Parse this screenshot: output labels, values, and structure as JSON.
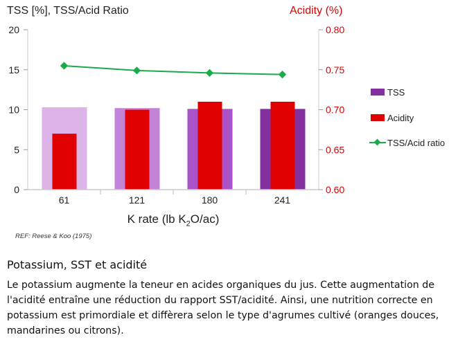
{
  "chart_data": {
    "type": "bar",
    "title": "",
    "ylabel": "TSS [%], TSS/Acid Ratio",
    "y2label": "Acidity (%)",
    "xlabel_parts": [
      "K rate (lb K",
      "2",
      "O/ac)"
    ],
    "categories": [
      "61",
      "121",
      "180",
      "241"
    ],
    "ylim": [
      0,
      20
    ],
    "yticks": [
      "0",
      "5",
      "10",
      "15",
      "20"
    ],
    "y2lim": [
      0.6,
      0.8
    ],
    "y2ticks": [
      "0.60",
      "0.65",
      "0.70",
      "0.75",
      "0.80"
    ],
    "series": [
      {
        "name": "TSS",
        "type": "bar",
        "axis": "left",
        "values": [
          10.3,
          10.2,
          10.1,
          10.1
        ],
        "colors": [
          "#dcb4e8",
          "#c383d8",
          "#ab52c8",
          "#8530a0"
        ],
        "legend_color": "#8530a0"
      },
      {
        "name": "Acidity",
        "type": "bar",
        "axis": "right",
        "values": [
          0.67,
          0.7,
          0.71,
          0.71
        ],
        "color": "#e00000"
      },
      {
        "name": "TSS/Acid ratio",
        "type": "line",
        "axis": "left",
        "values": [
          15.5,
          14.9,
          14.6,
          14.4
        ],
        "color": "#1aab4a"
      }
    ],
    "legend": "right",
    "grid": false
  },
  "ref": "REF: Reese & Koo (1975)",
  "article": {
    "heading": "Potassium, SST et acidité",
    "paragraph": "Le potassium augmente la teneur en acides organiques du jus. Cette augmentation de l'acidité entraîne une réduction du rapport SST/acidité. Ainsi, une nutrition correcte en potassium est primordiale et diffèrera selon le type d'agrumes cultivé (oranges douces, mandarines ou citrons)."
  }
}
